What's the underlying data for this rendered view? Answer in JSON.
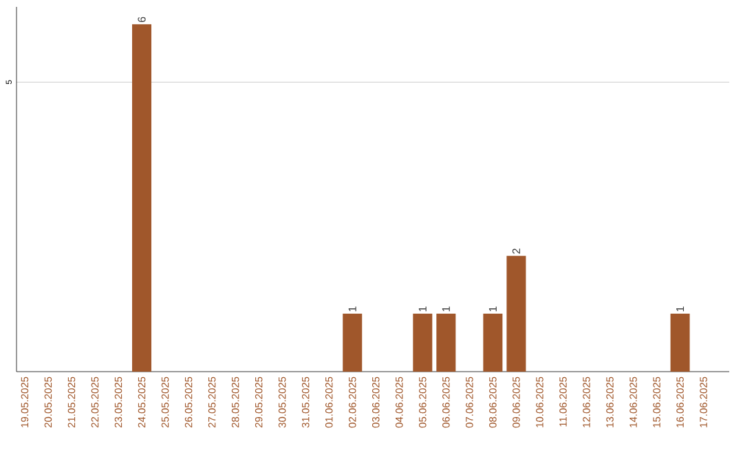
{
  "chart_data": {
    "type": "bar",
    "categories": [
      "19.05.2025",
      "20.05.2025",
      "21.05.2025",
      "22.05.2025",
      "23.05.2025",
      "24.05.2025",
      "25.05.2025",
      "26.05.2025",
      "27.05.2025",
      "28.05.2025",
      "29.05.2025",
      "30.05.2025",
      "31.05.2025",
      "01.06.2025",
      "02.06.2025",
      "03.06.2025",
      "04.06.2025",
      "05.06.2025",
      "06.06.2025",
      "07.06.2025",
      "08.06.2025",
      "09.06.2025",
      "10.06.2025",
      "11.06.2025",
      "12.06.2025",
      "13.06.2025",
      "14.06.2025",
      "15.06.2025",
      "16.06.2025",
      "17.06.2025"
    ],
    "values": [
      0,
      0,
      0,
      0,
      0,
      6,
      0,
      0,
      0,
      0,
      0,
      0,
      0,
      0,
      1,
      0,
      0,
      1,
      1,
      0,
      1,
      2,
      0,
      0,
      0,
      0,
      0,
      0,
      1,
      0
    ],
    "value_labels": [
      null,
      null,
      null,
      null,
      null,
      "6",
      null,
      null,
      null,
      null,
      null,
      null,
      null,
      null,
      "1",
      null,
      null,
      "1",
      "1",
      null,
      "1",
      "2",
      null,
      null,
      null,
      null,
      null,
      null,
      "1",
      null
    ],
    "color": "#a0572b",
    "ylim": [
      0,
      6.3
    ],
    "yticks": [
      5
    ],
    "grid": "y"
  }
}
